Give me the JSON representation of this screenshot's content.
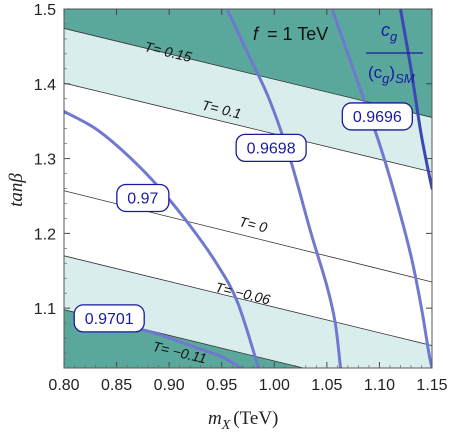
{
  "colors": {
    "dark_band": "#5aa79c",
    "light_band": "#d9eeec",
    "contour": "#7078d0",
    "contour_dark": "#3c46b4",
    "label_text": "#1a1aa0",
    "thin_line": "#333333"
  },
  "chart_data": {
    "type": "contour",
    "title": {
      "prefix": "f",
      "eq": "= 1 TeV"
    },
    "xlabel": {
      "var": "m",
      "sub": "X",
      "unit": "(TeV)"
    },
    "ylabel": "tanβ",
    "xlim": [
      0.8,
      1.15
    ],
    "ylim": [
      1.02,
      1.5
    ],
    "xticks": [
      0.8,
      0.85,
      0.9,
      0.95,
      1.0,
      1.05,
      1.1,
      1.15
    ],
    "xtick_labels": [
      "0.80",
      "0.85",
      "0.90",
      "0.95",
      "1.00",
      "1.05",
      "1.10",
      "1.15"
    ],
    "yticks": [
      1.1,
      1.2,
      1.3,
      1.4,
      1.5
    ],
    "ytick_labels": [
      "1.1",
      "1.2",
      "1.3",
      "1.4",
      "1.5"
    ],
    "legend": {
      "numerator": "c",
      "numerator_sub": "g",
      "denominator": "(c",
      "denominator_sub": "g",
      "denominator_tail": ")",
      "denominator_sub2": "SM"
    },
    "t_lines": [
      {
        "label": "T= 0.15",
        "value": 0.15,
        "points": [
          [
            0.8,
            1.474
          ],
          [
            1.15,
            1.355
          ]
        ],
        "label_at": [
          0.899,
          1.443
        ]
      },
      {
        "label": "T= 0.1",
        "value": 0.1,
        "points": [
          [
            0.8,
            1.401
          ],
          [
            1.15,
            1.282
          ]
        ],
        "label_at": [
          0.95,
          1.366
        ]
      },
      {
        "label": "T= 0",
        "value": 0.0,
        "points": [
          [
            0.8,
            1.257
          ],
          [
            1.15,
            1.135
          ]
        ],
        "label_at": [
          0.98,
          1.212
        ]
      },
      {
        "label": "T= −0.06",
        "value": -0.06,
        "points": [
          [
            0.8,
            1.17
          ],
          [
            1.15,
            1.05
          ]
        ],
        "label_at": [
          0.97,
          1.12
        ]
      },
      {
        "label": "T= −0.11",
        "value": -0.11,
        "points": [
          [
            0.8,
            1.098
          ],
          [
            1.15,
            0.978
          ]
        ],
        "label_at": [
          0.91,
          1.041
        ]
      }
    ],
    "contours": [
      {
        "label": "0.9701",
        "points": [
          [
            0.833,
            1.079
          ],
          [
            0.86,
            1.075
          ],
          [
            0.89,
            1.065
          ],
          [
            0.92,
            1.05
          ],
          [
            0.95,
            1.035
          ],
          [
            0.968,
            1.02
          ]
        ],
        "label_at": [
          0.843,
          1.087
        ]
      },
      {
        "label": "0.97",
        "points": [
          [
            0.8,
            1.363
          ],
          [
            0.83,
            1.34
          ],
          [
            0.86,
            1.305
          ],
          [
            0.89,
            1.262
          ],
          [
            0.92,
            1.21
          ],
          [
            0.945,
            1.16
          ],
          [
            0.965,
            1.108
          ],
          [
            0.985,
            1.02
          ]
        ],
        "label_at": [
          0.875,
          1.248
        ]
      },
      {
        "label": "0.9698",
        "points": [
          [
            0.955,
            1.5
          ],
          [
            0.975,
            1.44
          ],
          [
            0.995,
            1.38
          ],
          [
            1.015,
            1.3
          ],
          [
            1.035,
            1.2
          ],
          [
            1.05,
            1.13
          ],
          [
            1.058,
            1.08
          ],
          [
            1.063,
            1.02
          ]
        ],
        "label_at": [
          0.997,
          1.315
        ]
      },
      {
        "label": "0.9696",
        "points": [
          [
            1.055,
            1.5
          ],
          [
            1.07,
            1.44
          ],
          [
            1.085,
            1.38
          ],
          [
            1.1,
            1.32
          ],
          [
            1.115,
            1.25
          ],
          [
            1.13,
            1.17
          ],
          [
            1.14,
            1.1
          ],
          [
            1.147,
            1.04
          ],
          [
            1.15,
            1.02
          ]
        ],
        "label_at": [
          1.098,
          1.357
        ]
      },
      {
        "label": "",
        "points": [
          [
            1.12,
            1.5
          ],
          [
            1.13,
            1.42
          ],
          [
            1.14,
            1.33
          ],
          [
            1.15,
            1.26
          ]
        ],
        "label_at": null
      }
    ],
    "regions": [
      {
        "name": "upper-dark",
        "shade": "dark",
        "from": "T= 0.15",
        "to": "top"
      },
      {
        "name": "upper-light",
        "shade": "light",
        "from": "T= 0.1",
        "to": "T= 0.15"
      },
      {
        "name": "lower-light",
        "shade": "light",
        "from": "T= −0.11",
        "to": "T= −0.06"
      },
      {
        "name": "lower-dark",
        "shade": "dark",
        "from": "bottom",
        "to": "T= −0.11"
      }
    ],
    "grid": false
  }
}
